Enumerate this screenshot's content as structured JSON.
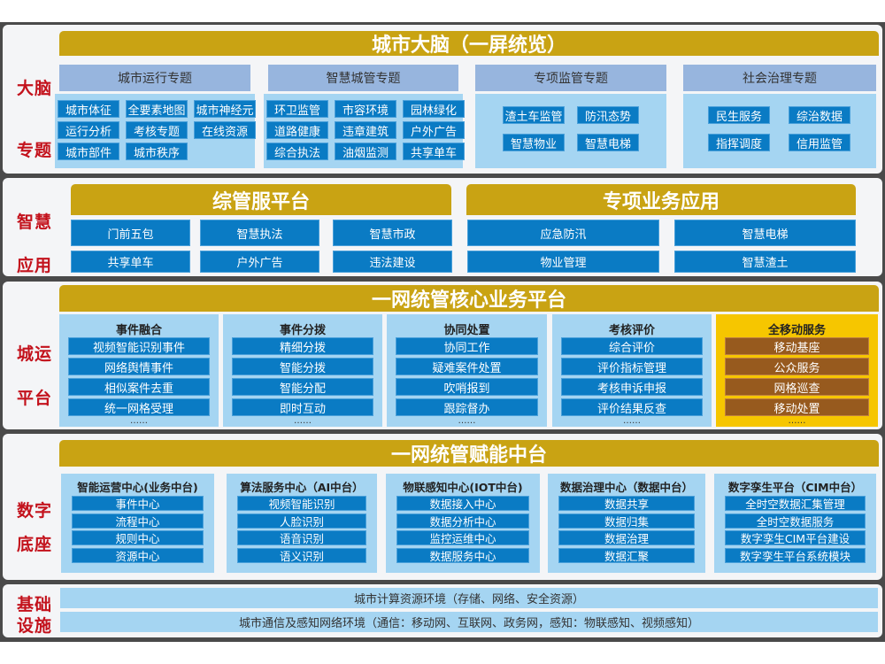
{
  "brain": {
    "side": [
      "大脑",
      "专题"
    ],
    "title": "城市大脑（一屏统览）",
    "groups": [
      {
        "header": "城市运行专题",
        "items": [
          "城市体征",
          "全要素地图",
          "城市神经元",
          "运行分析",
          "考核专题",
          "在线资源",
          "城市部件",
          "城市秩序"
        ]
      },
      {
        "header": "智慧城管专题",
        "items": [
          "环卫监管",
          "市容环境",
          "园林绿化",
          "道路健康",
          "违章建筑",
          "户外广告",
          "综合执法",
          "油烟监测",
          "共享单车"
        ]
      },
      {
        "header": "专项监管专题",
        "items": [
          "渣土车监管",
          "防汛态势",
          "智慧物业",
          "智慧电梯"
        ]
      },
      {
        "header": "社会治理专题",
        "items": [
          "民生服务",
          "综治数据",
          "指挥调度",
          "信用监管"
        ]
      }
    ]
  },
  "apps": {
    "side": [
      "智慧",
      "应用"
    ],
    "left": {
      "title": "综管服平台",
      "items": [
        "门前五包",
        "智慧执法",
        "智慧市政",
        "共享单车",
        "户外广告",
        "违法建设"
      ]
    },
    "right": {
      "title": "专项业务应用",
      "items": [
        "应急防汛",
        "智慧电梯",
        "物业管理",
        "智慧渣土"
      ]
    }
  },
  "platform": {
    "side": [
      "城运",
      "平台"
    ],
    "title": "一网统管核心业务平台",
    "more": "……",
    "columns": [
      {
        "title": "事件融合",
        "items": [
          "视频智能识别事件",
          "网络舆情事件",
          "相似案件去重",
          "统一网格受理"
        ]
      },
      {
        "title": "事件分拨",
        "items": [
          "精细分拨",
          "智能分拨",
          "智能分配",
          "即时互动"
        ]
      },
      {
        "title": "协同处置",
        "items": [
          "协同工作",
          "疑难案件处置",
          "吹哨报到",
          "跟踪督办"
        ]
      },
      {
        "title": "考核评价",
        "items": [
          "综合评价",
          "评价指标管理",
          "考核申诉申报",
          "评价结果反查"
        ]
      },
      {
        "title": "全移动服务",
        "items": [
          "移动基座",
          "公众服务",
          "网格巡查",
          "移动处置"
        ]
      }
    ]
  },
  "base": {
    "side": [
      "数字",
      "底座"
    ],
    "title": "一网统管赋能中台",
    "columns": [
      {
        "title": "智能运营中心(业务中台)",
        "items": [
          "事件中心",
          "流程中心",
          "规则中心",
          "资源中心"
        ]
      },
      {
        "title": "算法服务中心（AI中台）",
        "items": [
          "视频智能识别",
          "人脸识别",
          "语音识别",
          "语义识别"
        ]
      },
      {
        "title": "物联感知中心(IOT中台)",
        "items": [
          "数据接入中心",
          "数据分析中心",
          "监控运维中心",
          "数据服务中心"
        ]
      },
      {
        "title": "数据治理中心（数据中台）",
        "items": [
          "数据共享",
          "数据归集",
          "数据治理",
          "数据汇聚"
        ]
      },
      {
        "title": "数字孪生平台（CIM中台）",
        "items": [
          "全时空数据汇集管理",
          "全时空数据服务",
          "数字孪生CIM平台建设",
          "数字孪生平台系统模块"
        ]
      }
    ]
  },
  "infra": {
    "side": [
      "基础",
      "设施"
    ],
    "items": [
      "城市计算资源环境（存储、网络、安全资源）",
      "城市通信及感知网络环境（通信：移动网、互联网、政务网，感知：物联感知、视频感知）"
    ]
  },
  "colors": {
    "gold": "#c9a313",
    "label_red": "#c3121c",
    "button_blue": "#0a7bc4",
    "panel_blue": "#a5d5f2",
    "header_blue": "#97b5de",
    "mobile_yellow": "#f6c600",
    "mobile_brown": "#975a1e"
  }
}
